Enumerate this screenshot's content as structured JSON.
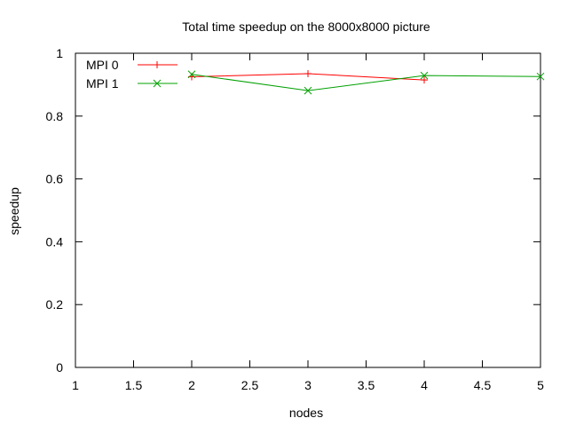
{
  "chart_data": {
    "type": "line",
    "title": "Total time speedup on the 8000x8000 picture",
    "xlabel": "nodes",
    "ylabel": "speedup",
    "xlim": [
      1,
      5
    ],
    "ylim": [
      0,
      1
    ],
    "x_ticks": [
      "1",
      "1.5",
      "2",
      "2.5",
      "3",
      "3.5",
      "4",
      "4.5",
      "5"
    ],
    "y_ticks": [
      "0",
      "0.2",
      "0.4",
      "0.6",
      "0.8",
      "1"
    ],
    "grid": false,
    "legend_position": "top-left",
    "series": [
      {
        "name": "MPI 0",
        "color": "#ff0000",
        "marker": "plus",
        "x": [
          2,
          3,
          4
        ],
        "y": [
          0.925,
          0.935,
          0.915
        ]
      },
      {
        "name": "MPI 1",
        "color": "#00a000",
        "marker": "cross",
        "x": [
          2,
          3,
          4,
          5
        ],
        "y": [
          0.933,
          0.881,
          0.929,
          0.926
        ]
      }
    ]
  }
}
